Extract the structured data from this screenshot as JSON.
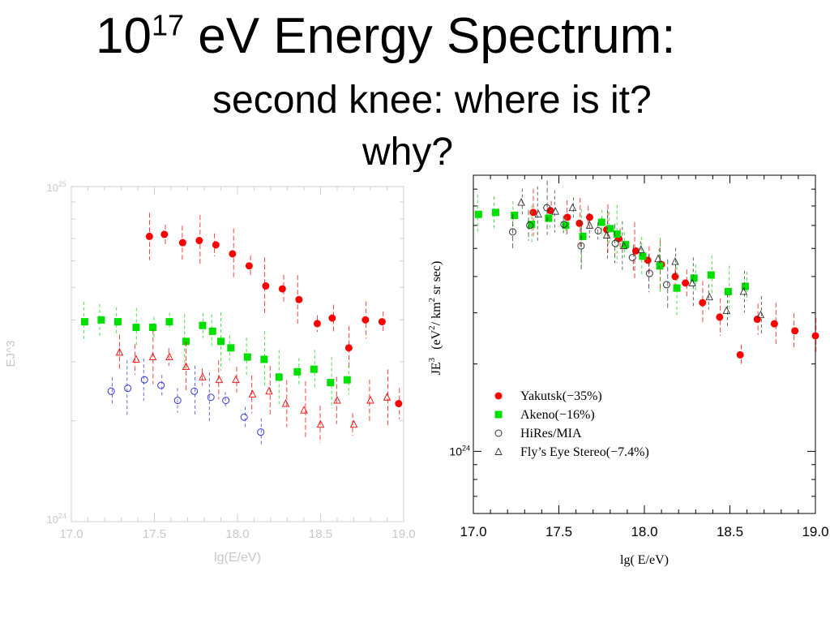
{
  "title": {
    "line1_base": "10",
    "line1_exp": "17",
    "line1_rest": " eV Energy Spectrum:",
    "line2": "second knee: where is it?",
    "line3": "why?"
  },
  "chart_data": [
    {
      "type": "scatter",
      "xlabel": "lg(E/eV)",
      "ylabel": "EJ^3",
      "xlim": [
        17.0,
        19.0
      ],
      "ylim": [
        1e+24,
        1e+25
      ],
      "yscale": "log",
      "x_ticks": [
        "17.0",
        "17.5",
        "18.0",
        "18.5",
        "19.0"
      ],
      "y_ticks": [
        {
          "base": "10",
          "exp": "24"
        },
        {
          "base": "10",
          "exp": "25"
        }
      ],
      "colors": {
        "red": "#ff0000",
        "green": "#00e000",
        "blue": "#3333dd"
      },
      "series": [
        {
          "marker": "filled-circle",
          "color": "red",
          "points": [
            [
              17.47,
              7.1e+24
            ],
            [
              17.56,
              7.2e+24
            ],
            [
              17.67,
              6.8e+24
            ],
            [
              17.77,
              6.9e+24
            ],
            [
              17.87,
              6.7e+24
            ],
            [
              17.97,
              6.3e+24
            ],
            [
              18.07,
              5.8e+24
            ],
            [
              18.17,
              5.05e+24
            ],
            [
              18.27,
              4.95e+24
            ],
            [
              18.37,
              4.6e+24
            ],
            [
              18.48,
              3.9e+24
            ],
            [
              18.57,
              4.05e+24
            ],
            [
              18.67,
              3.3e+24
            ],
            [
              18.77,
              4e+24
            ],
            [
              18.87,
              3.95e+24
            ],
            [
              18.97,
              2.25e+24
            ]
          ]
        },
        {
          "marker": "filled-square",
          "color": "green",
          "points": [
            [
              17.08,
              3.95e+24
            ],
            [
              17.18,
              4e+24
            ],
            [
              17.28,
              3.95e+24
            ],
            [
              17.39,
              3.8e+24
            ],
            [
              17.49,
              3.8e+24
            ],
            [
              17.59,
              3.95e+24
            ],
            [
              17.69,
              3.45e+24
            ],
            [
              17.79,
              3.85e+24
            ],
            [
              17.85,
              3.7e+24
            ],
            [
              17.9,
              3.45e+24
            ],
            [
              17.96,
              3.3e+24
            ],
            [
              18.06,
              3.1e+24
            ],
            [
              18.16,
              3.05e+24
            ],
            [
              18.25,
              2.7e+24
            ],
            [
              18.36,
              2.8e+24
            ],
            [
              18.46,
              2.85e+24
            ],
            [
              18.56,
              2.6e+24
            ],
            [
              18.66,
              2.65e+24
            ]
          ]
        },
        {
          "marker": "open-triangle",
          "color": "red",
          "points": [
            [
              17.29,
              3.2e+24
            ],
            [
              17.39,
              3.05e+24
            ],
            [
              17.49,
              3.1e+24
            ],
            [
              17.59,
              3.1e+24
            ],
            [
              17.69,
              2.9e+24
            ],
            [
              17.79,
              2.7e+24
            ],
            [
              17.89,
              2.65e+24
            ],
            [
              17.99,
              2.65e+24
            ],
            [
              18.09,
              2.4e+24
            ],
            [
              18.19,
              2.45e+24
            ],
            [
              18.29,
              2.25e+24
            ],
            [
              18.4,
              2.15e+24
            ],
            [
              18.5,
              1.95e+24
            ],
            [
              18.6,
              2.3e+24
            ],
            [
              18.7,
              1.95e+24
            ],
            [
              18.8,
              2.3e+24
            ],
            [
              18.9,
              2.35e+24
            ]
          ]
        },
        {
          "marker": "open-circle",
          "color": "blue",
          "points": [
            [
              17.24,
              2.45e+24
            ],
            [
              17.34,
              2.5e+24
            ],
            [
              17.44,
              2.65e+24
            ],
            [
              17.54,
              2.55e+24
            ],
            [
              17.64,
              2.3e+24
            ],
            [
              17.74,
              2.45e+24
            ],
            [
              17.84,
              2.35e+24
            ],
            [
              17.93,
              2.3e+24
            ],
            [
              18.04,
              2.05e+24
            ],
            [
              18.14,
              1.85e+24
            ]
          ]
        }
      ]
    },
    {
      "type": "scatter",
      "xlabel": "lg( E/eV)",
      "ylabel_base": "JE",
      "ylabel_base_sup": "3",
      "ylabel_units_a": "(eV",
      "ylabel_units_a_sup": "2",
      "ylabel_units_b": "/ km",
      "ylabel_units_b_sup": "2",
      "ylabel_units_c": "sr  sec)",
      "xlim": [
        17.0,
        19.0
      ],
      "yscale": "log",
      "x_ticks": [
        "17.0",
        "17.5",
        "18.0",
        "18.5",
        "19.0"
      ],
      "y_ticks": [
        {
          "base": "10",
          "exp": "24"
        }
      ],
      "legend_position": "bottom-left",
      "colors": {
        "red": "#ff0000",
        "green": "#00e000",
        "black": "#333333"
      },
      "legend": [
        {
          "marker": "filled-circle",
          "color": "red",
          "label": "Yakutsk(−35%)"
        },
        {
          "marker": "filled-square",
          "color": "green",
          "label": "Akeno(−16%)"
        },
        {
          "marker": "open-circle",
          "color": "black",
          "label": "HiRes/MIA"
        },
        {
          "marker": "open-triangle",
          "color": "black",
          "label": "Fly’s Eye Stereo(−7.4%)"
        }
      ],
      "series": [
        {
          "name": "Yakutsk(−35%)",
          "marker": "filled-circle",
          "color": "red",
          "points": [
            [
              17.35,
              6.65e+24
            ],
            [
              17.45,
              6.75e+24
            ],
            [
              17.55,
              6.4e+24
            ],
            [
              17.62,
              6.1e+24
            ],
            [
              17.68,
              6.4e+24
            ],
            [
              17.78,
              5.8e+24
            ],
            [
              17.85,
              5.4e+24
            ],
            [
              17.95,
              4.9e+24
            ],
            [
              18.02,
              4.55e+24
            ],
            [
              18.1,
              4.4e+24
            ],
            [
              18.18,
              4e+24
            ],
            [
              18.24,
              3.8e+24
            ],
            [
              18.34,
              3.25e+24
            ],
            [
              18.44,
              2.9e+24
            ],
            [
              18.56,
              2.15e+24
            ],
            [
              18.66,
              2.85e+24
            ],
            [
              18.76,
              2.75e+24
            ],
            [
              18.88,
              2.6e+24
            ],
            [
              19.0,
              2.5e+24
            ]
          ]
        },
        {
          "name": "Akeno(−16%)",
          "marker": "filled-square",
          "color": "green",
          "points": [
            [
              17.03,
              6.55e+24
            ],
            [
              17.13,
              6.65e+24
            ],
            [
              17.24,
              6.5e+24
            ],
            [
              17.34,
              6.05e+24
            ],
            [
              17.44,
              6.35e+24
            ],
            [
              17.54,
              6e+24
            ],
            [
              17.64,
              5.5e+24
            ],
            [
              17.75,
              6.15e+24
            ],
            [
              17.8,
              5.85e+24
            ],
            [
              17.84,
              5.6e+24
            ],
            [
              17.89,
              5.15e+24
            ],
            [
              17.99,
              4.7e+24
            ],
            [
              18.09,
              4.35e+24
            ],
            [
              18.19,
              3.65e+24
            ],
            [
              18.29,
              3.95e+24
            ],
            [
              18.39,
              4.05e+24
            ],
            [
              18.49,
              3.55e+24
            ],
            [
              18.59,
              3.7e+24
            ]
          ]
        },
        {
          "name": "HiRes/MIA",
          "marker": "open-circle",
          "color": "black",
          "points": [
            [
              17.23,
              5.7e+24
            ],
            [
              17.33,
              6e+24
            ],
            [
              17.43,
              6.9e+24
            ],
            [
              17.53,
              6.05e+24
            ],
            [
              17.63,
              5.1e+24
            ],
            [
              17.73,
              5.75e+24
            ],
            [
              17.83,
              5.2e+24
            ],
            [
              17.93,
              4.65e+24
            ],
            [
              18.03,
              4.1e+24
            ],
            [
              18.13,
              3.75e+24
            ]
          ]
        },
        {
          "name": "Fly’s Eye Stereo(−7.4%)",
          "marker": "open-triangle",
          "color": "black",
          "points": [
            [
              17.28,
              7.2e+24
            ],
            [
              17.38,
              6.55e+24
            ],
            [
              17.48,
              6.7e+24
            ],
            [
              17.58,
              6.9e+24
            ],
            [
              17.68,
              6e+24
            ],
            [
              17.78,
              5.55e+24
            ],
            [
              17.88,
              5.1e+24
            ],
            [
              17.98,
              4.95e+24
            ],
            [
              18.08,
              4.6e+24
            ],
            [
              18.18,
              4.5e+24
            ],
            [
              18.28,
              3.8e+24
            ],
            [
              18.38,
              3.4e+24
            ],
            [
              18.48,
              3.05e+24
            ],
            [
              18.58,
              3.55e+24
            ],
            [
              18.68,
              2.95e+24
            ]
          ]
        }
      ]
    }
  ]
}
